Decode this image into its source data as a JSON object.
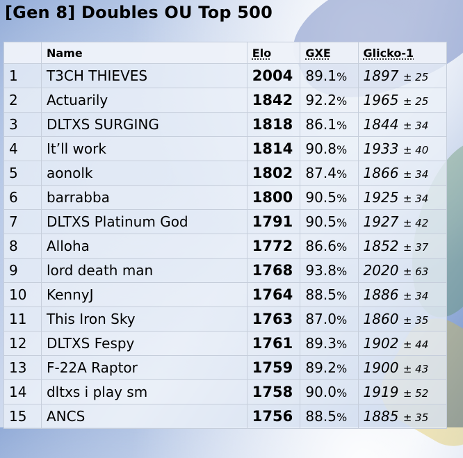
{
  "title": "[Gen 8] Doubles OU Top 500",
  "columns": {
    "rank": "",
    "name": "Name",
    "elo": "Elo",
    "gxe": "GXE",
    "glicko": "Glicko-1"
  },
  "rows": [
    {
      "rank": "1",
      "name": "T3CH THIEVES",
      "elo": "2004",
      "gxe": "89.1",
      "gxe_unit": "%",
      "glicko": "1897",
      "dev": "± 25"
    },
    {
      "rank": "2",
      "name": "Actuarily",
      "elo": "1842",
      "gxe": "92.2",
      "gxe_unit": "%",
      "glicko": "1965",
      "dev": "± 25"
    },
    {
      "rank": "3",
      "name": "DLTXS SURGING",
      "elo": "1818",
      "gxe": "86.1",
      "gxe_unit": "%",
      "glicko": "1844",
      "dev": "± 34"
    },
    {
      "rank": "4",
      "name": "It’ll work",
      "elo": "1814",
      "gxe": "90.8",
      "gxe_unit": "%",
      "glicko": "1933",
      "dev": "± 40"
    },
    {
      "rank": "5",
      "name": "aonolk",
      "elo": "1802",
      "gxe": "87.4",
      "gxe_unit": "%",
      "glicko": "1866",
      "dev": "± 34"
    },
    {
      "rank": "6",
      "name": "barrabba",
      "elo": "1800",
      "gxe": "90.5",
      "gxe_unit": "%",
      "glicko": "1925",
      "dev": "± 34"
    },
    {
      "rank": "7",
      "name": "DLTXS Platinum God",
      "elo": "1791",
      "gxe": "90.5",
      "gxe_unit": "%",
      "glicko": "1927",
      "dev": "± 42"
    },
    {
      "rank": "8",
      "name": "Alloha",
      "elo": "1772",
      "gxe": "86.6",
      "gxe_unit": "%",
      "glicko": "1852",
      "dev": "± 37"
    },
    {
      "rank": "9",
      "name": "lord death man",
      "elo": "1768",
      "gxe": "93.8",
      "gxe_unit": "%",
      "glicko": "2020",
      "dev": "± 63"
    },
    {
      "rank": "10",
      "name": "KennyJ",
      "elo": "1764",
      "gxe": "88.5",
      "gxe_unit": "%",
      "glicko": "1886",
      "dev": "± 34"
    },
    {
      "rank": "11",
      "name": "This Iron Sky",
      "elo": "1763",
      "gxe": "87.0",
      "gxe_unit": "%",
      "glicko": "1860",
      "dev": "± 35"
    },
    {
      "rank": "12",
      "name": "DLTXS Fespy",
      "elo": "1761",
      "gxe": "89.3",
      "gxe_unit": "%",
      "glicko": "1902",
      "dev": "± 44"
    },
    {
      "rank": "13",
      "name": "F-22A Raptor",
      "elo": "1759",
      "gxe": "89.2",
      "gxe_unit": "%",
      "glicko": "1900",
      "dev": "± 43"
    },
    {
      "rank": "14",
      "name": "dltxs i play sm",
      "elo": "1758",
      "gxe": "90.0",
      "gxe_unit": "%",
      "glicko": "1919",
      "dev": "± 52"
    },
    {
      "rank": "15",
      "name": "ANCS",
      "elo": "1756",
      "gxe": "88.5",
      "gxe_unit": "%",
      "glicko": "1885",
      "dev": "± 35"
    }
  ]
}
